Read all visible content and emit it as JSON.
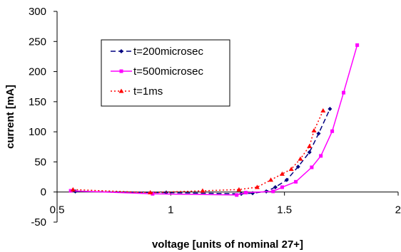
{
  "chart_data": {
    "type": "line",
    "title": "",
    "xlabel": "voltage [units of nominal 27+]",
    "ylabel": "current [mA]",
    "xlim": [
      0.5,
      2
    ],
    "ylim": [
      -50,
      300
    ],
    "x_ticks": [
      "0.5",
      "1",
      "1.5",
      "2"
    ],
    "y_ticks": [
      "-50",
      "0",
      "50",
      "100",
      "150",
      "200",
      "250",
      "300"
    ],
    "x_tick_values": [
      0.5,
      1,
      1.5,
      2
    ],
    "y_tick_values": [
      -50,
      0,
      50,
      100,
      150,
      200,
      250,
      300
    ],
    "grid": false,
    "legend_position": "top-left",
    "series": [
      {
        "name": "t=200microsec",
        "color": "#000080",
        "dash": "7,4",
        "marker": "diamond",
        "points": [
          [
            0.58,
            1
          ],
          [
            0.98,
            -1
          ],
          [
            1.31,
            -3
          ],
          [
            1.36,
            -2
          ],
          [
            1.42,
            1
          ],
          [
            1.46,
            8
          ],
          [
            1.51,
            20
          ],
          [
            1.56,
            42
          ],
          [
            1.61,
            66
          ],
          [
            1.65,
            97
          ],
          [
            1.7,
            138
          ]
        ]
      },
      {
        "name": "t=500microsec",
        "color": "#ff00ff",
        "dash": "",
        "marker": "square",
        "points": [
          [
            0.56,
            2
          ],
          [
            0.92,
            -3
          ],
          [
            1.29,
            -5
          ],
          [
            1.33,
            -1
          ],
          [
            1.45,
            1
          ],
          [
            1.49,
            8
          ],
          [
            1.55,
            17
          ],
          [
            1.62,
            41
          ],
          [
            1.66,
            60
          ],
          [
            1.71,
            101
          ],
          [
            1.76,
            165
          ],
          [
            1.82,
            244
          ]
        ]
      },
      {
        "name": "t=1ms",
        "color": "#ff0000",
        "dash": "2,3",
        "marker": "triangle",
        "points": [
          [
            0.57,
            4
          ],
          [
            0.91,
            -1
          ],
          [
            1.14,
            2
          ],
          [
            1.3,
            4
          ],
          [
            1.38,
            8
          ],
          [
            1.44,
            20
          ],
          [
            1.49,
            30
          ],
          [
            1.53,
            38
          ],
          [
            1.57,
            55
          ],
          [
            1.61,
            76
          ],
          [
            1.63,
            102
          ],
          [
            1.67,
            135
          ]
        ]
      }
    ]
  }
}
